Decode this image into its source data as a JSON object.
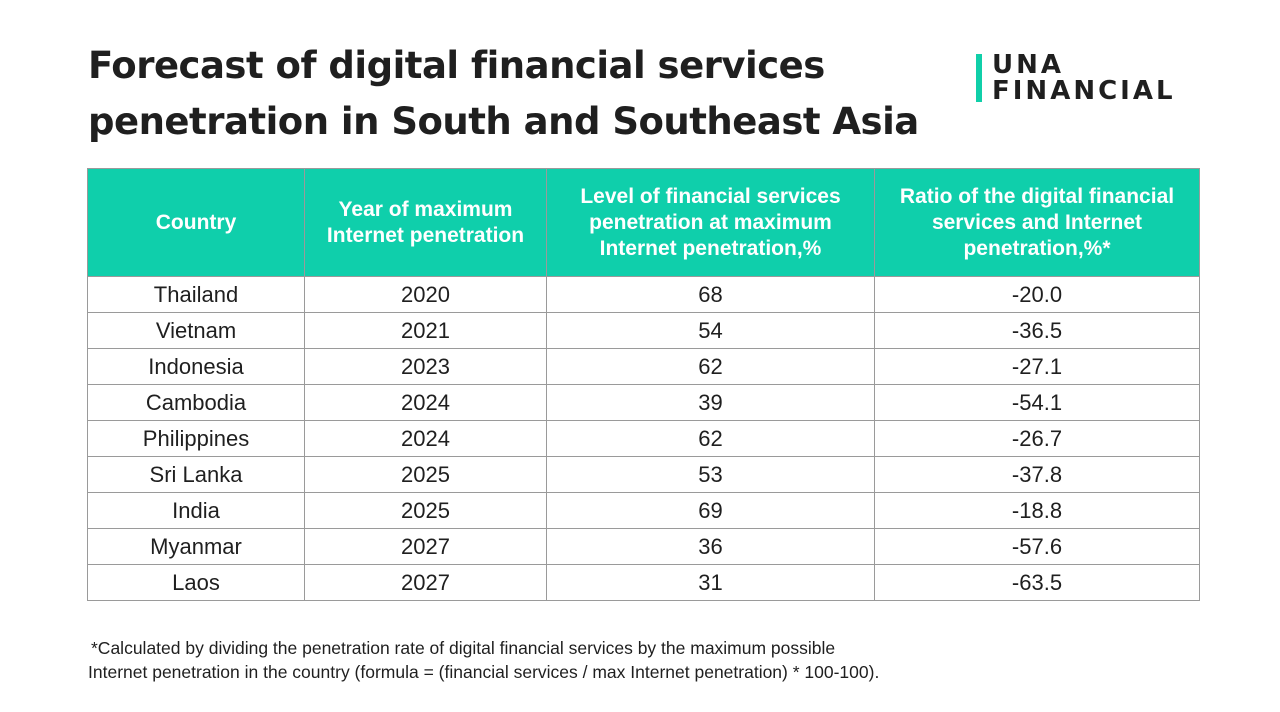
{
  "title": {
    "line1": "Forecast of digital financial services",
    "line2": "penetration in South and Southeast Asia"
  },
  "logo": {
    "line1": "UNA",
    "line2": "FINANCIAL",
    "accent_color": "#10cfa9"
  },
  "table": {
    "header_color": "#0fcfab",
    "columns": [
      "Country",
      "Year of maximum Internet penetration",
      "Level of financial services penetration at maximum Internet penetration,%",
      "Ratio of the digital financial services and Internet penetration,%*"
    ],
    "rows": [
      [
        "Thailand",
        "2020",
        "68",
        "-20.0"
      ],
      [
        "Vietnam",
        "2021",
        "54",
        "-36.5"
      ],
      [
        "Indonesia",
        "2023",
        "62",
        "-27.1"
      ],
      [
        "Cambodia",
        "2024",
        "39",
        "-54.1"
      ],
      [
        "Philippines",
        "2024",
        "62",
        "-26.7"
      ],
      [
        "Sri Lanka",
        "2025",
        "53",
        "-37.8"
      ],
      [
        "India",
        "2025",
        "69",
        "-18.8"
      ],
      [
        "Myanmar",
        "2027",
        "36",
        "-57.6"
      ],
      [
        "Laos",
        "2027",
        "31",
        "-63.5"
      ]
    ]
  },
  "footnote": {
    "line1": "*Calculated by dividing the penetration rate of digital financial services by the maximum possible",
    "line2": "Internet penetration in the country (formula = (financial services / max Internet penetration) * 100-100)."
  }
}
